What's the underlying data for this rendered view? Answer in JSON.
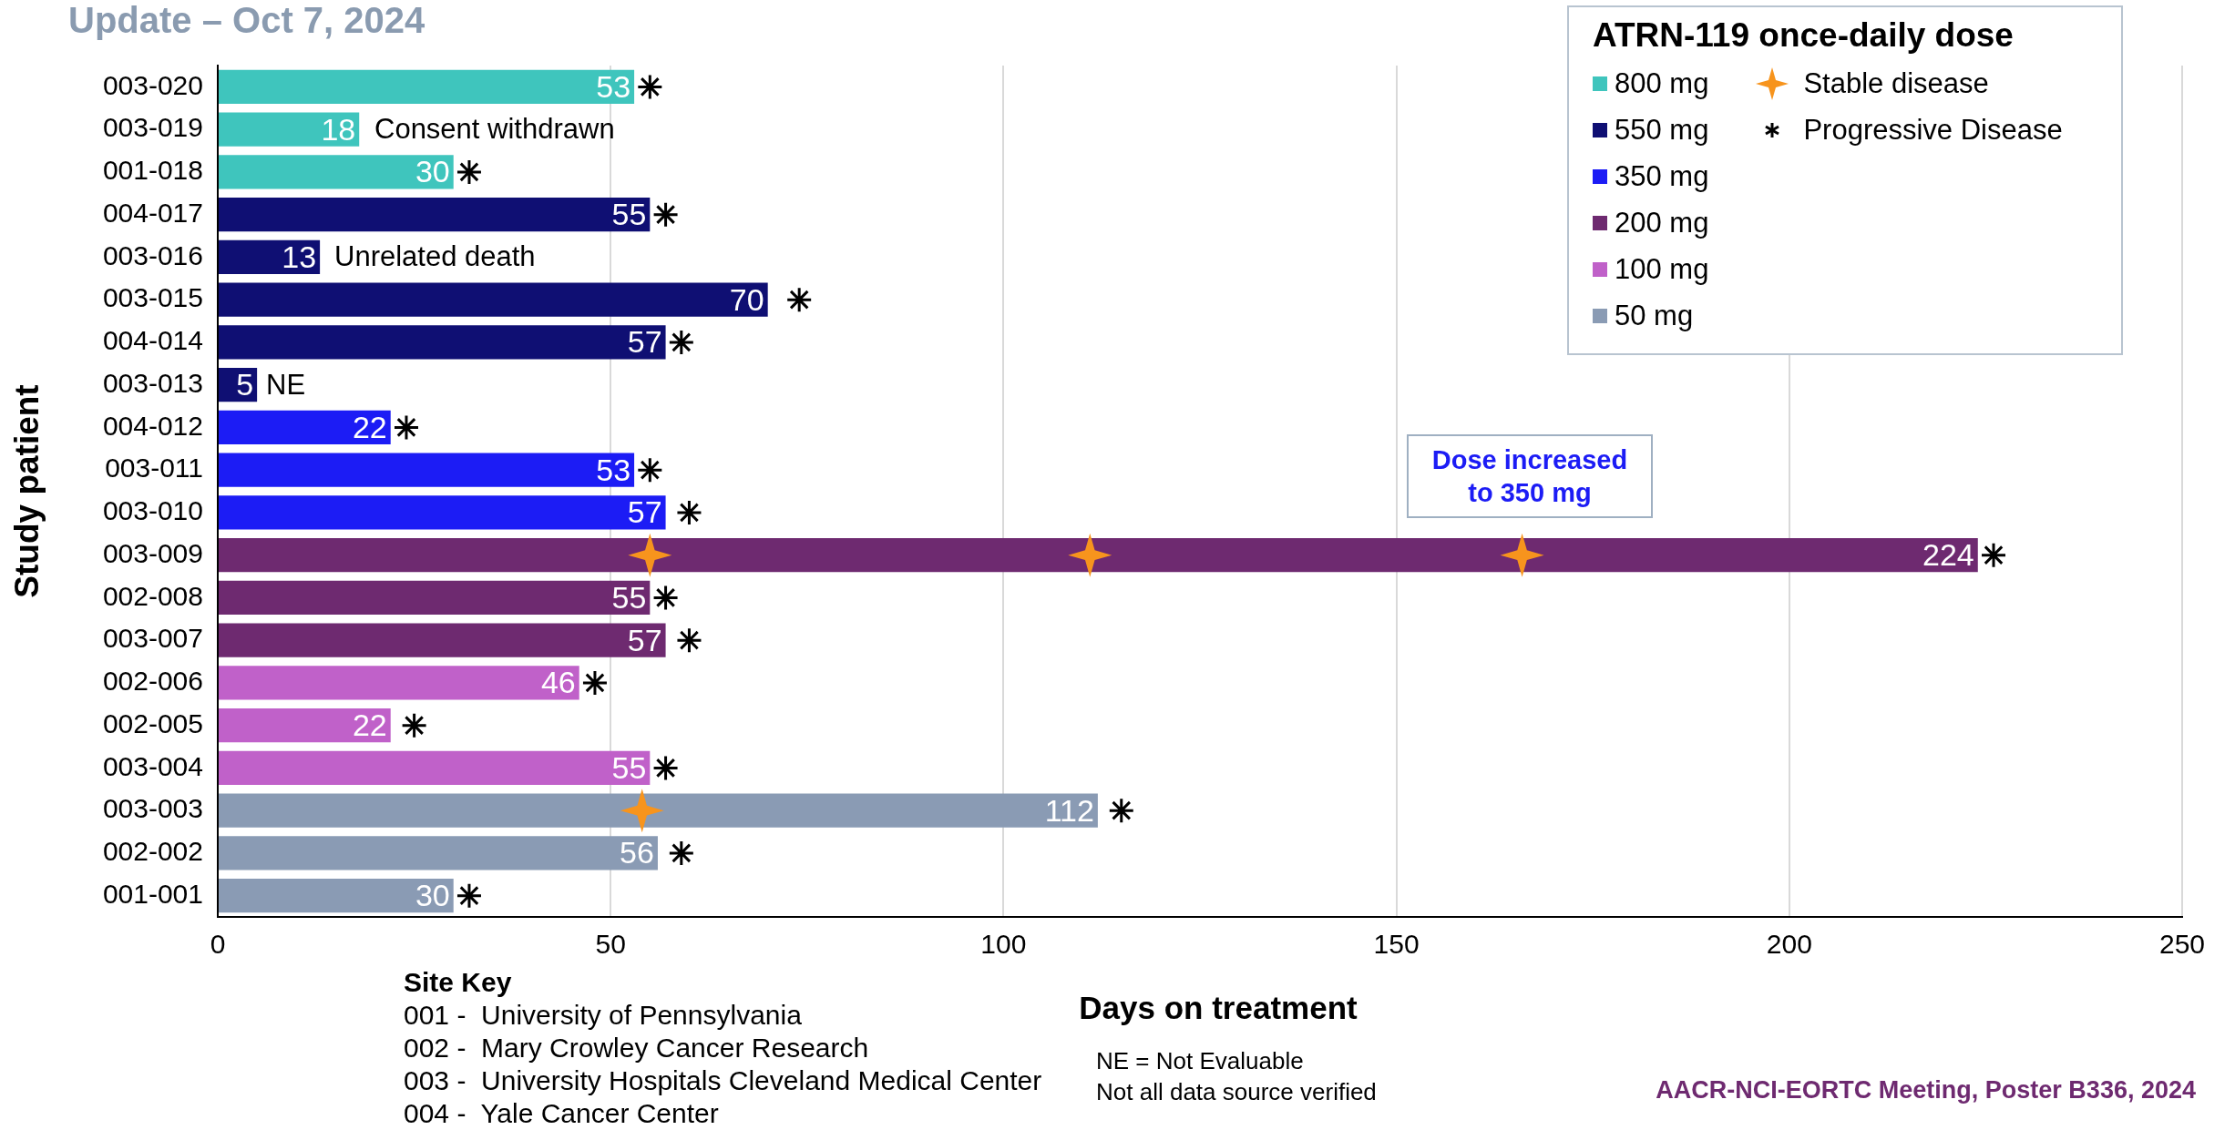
{
  "chart_data": {
    "type": "bar",
    "orientation": "horizontal",
    "title": "Update – Oct 7, 2024",
    "xlabel": "Days on treatment",
    "ylabel": "Study patient",
    "legend_title": "ATRN-119 once-daily dose",
    "categories": [
      "003-020",
      "003-019",
      "001-018",
      "004-017",
      "003-016",
      "003-015",
      "004-014",
      "003-013",
      "004-012",
      "003-011",
      "003-010",
      "003-009",
      "002-008",
      "003-007",
      "002-006",
      "002-005",
      "003-004",
      "003-003",
      "002-002",
      "001-001"
    ],
    "series": [
      {
        "name": "800 mg",
        "color": "#3fc5bd",
        "values": [
          53,
          18,
          30,
          null,
          null,
          null,
          null,
          null,
          null,
          null,
          null,
          null,
          null,
          null,
          null,
          null,
          null,
          null,
          null,
          null
        ],
        "value_labels": [
          "53",
          "18",
          "30",
          null,
          null,
          null,
          null,
          null,
          null,
          null,
          null,
          null,
          null,
          null,
          null,
          null,
          null,
          null,
          null,
          null
        ]
      },
      {
        "name": "550 mg",
        "color": "#0f0f73",
        "values": [
          null,
          null,
          null,
          55,
          13,
          70,
          57,
          5,
          null,
          null,
          null,
          null,
          null,
          null,
          null,
          null,
          null,
          null,
          null,
          null
        ],
        "value_labels": [
          null,
          null,
          null,
          "55",
          "13",
          "70",
          "57",
          "5",
          null,
          null,
          null,
          null,
          null,
          null,
          null,
          null,
          null,
          null,
          null,
          null
        ]
      },
      {
        "name": "350 mg",
        "color": "#1c1cf5",
        "values": [
          null,
          null,
          null,
          null,
          null,
          null,
          null,
          null,
          22,
          53,
          57,
          null,
          null,
          null,
          null,
          null,
          null,
          null,
          null,
          null
        ],
        "value_labels": [
          null,
          null,
          null,
          null,
          null,
          null,
          null,
          null,
          "22",
          "53",
          "57",
          null,
          null,
          null,
          null,
          null,
          null,
          null,
          null,
          null
        ]
      },
      {
        "name": "200 mg",
        "color": "#6e2a70",
        "values": [
          null,
          null,
          null,
          null,
          null,
          null,
          null,
          null,
          null,
          null,
          null,
          224,
          55,
          57,
          null,
          null,
          null,
          null,
          null,
          null
        ],
        "value_labels": [
          null,
          null,
          null,
          null,
          null,
          null,
          null,
          null,
          null,
          null,
          null,
          "224",
          "55",
          "57",
          null,
          null,
          null,
          null,
          null,
          null
        ]
      },
      {
        "name": "100 mg",
        "color": "#c061c9",
        "values": [
          null,
          null,
          null,
          null,
          null,
          null,
          null,
          null,
          null,
          null,
          null,
          null,
          null,
          null,
          46,
          22,
          55,
          null,
          null,
          null
        ],
        "value_labels": [
          null,
          null,
          null,
          null,
          null,
          null,
          null,
          null,
          null,
          null,
          null,
          null,
          null,
          null,
          "46",
          "22",
          "55",
          null,
          null,
          null
        ]
      },
      {
        "name": "50 mg",
        "color": "#8a9bb4",
        "values": [
          null,
          null,
          null,
          null,
          null,
          null,
          null,
          null,
          null,
          null,
          null,
          null,
          null,
          null,
          null,
          null,
          null,
          112,
          56,
          30
        ],
        "value_labels": [
          null,
          null,
          null,
          null,
          null,
          null,
          null,
          null,
          null,
          null,
          null,
          null,
          null,
          null,
          null,
          null,
          null,
          "112",
          "56",
          "30"
        ]
      },
      {
        "name": "Stable disease",
        "type": "scatter",
        "marker": "star",
        "color": "#f7941d",
        "x": [
          "003-009",
          "003-009",
          "003-009",
          "003-003"
        ],
        "values": [
          55,
          111,
          166,
          54
        ]
      },
      {
        "name": "Progressive Disease",
        "type": "scatter",
        "marker": "cross",
        "color": "#000000",
        "x": [
          "003-020",
          "001-018",
          "004-017",
          "003-015",
          "004-014",
          "004-012",
          "003-011",
          "003-010",
          "003-009",
          "002-008",
          "003-007",
          "002-006",
          "002-005",
          "003-004",
          "003-003",
          "002-002",
          "001-001"
        ],
        "values": [
          55,
          32,
          57,
          74,
          59,
          24,
          55,
          60,
          226,
          57,
          60,
          48,
          25,
          57,
          115,
          59,
          32
        ]
      }
    ],
    "xlim": [
      0,
      250
    ],
    "xticks": [
      0,
      50,
      100,
      150,
      200,
      250
    ],
    "grid": "x",
    "legend": "top right",
    "annotations": [
      "Consent withdrawn",
      "Unrelated death",
      "NE",
      "Dose increased to 350 mg",
      "Site Key",
      "001 -  University of Pennsylvania",
      "002 -  Mary Crowley Cancer Research",
      "003 -  University Hospitals Cleveland Medical Center",
      "004 -  Yale Cancer Center",
      "NE = Not Evaluable",
      "Not all data source verified",
      "AACR-NCI-EORTC Meeting, Poster B336, 2024"
    ]
  }
}
